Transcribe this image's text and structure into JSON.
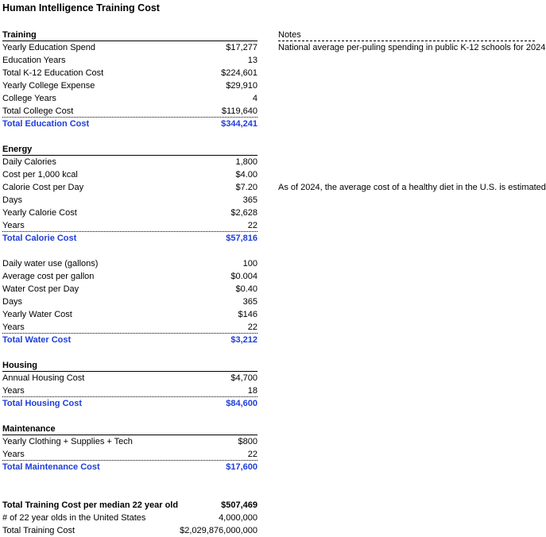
{
  "title": "Human Intelligence Training Cost",
  "notes_header": "Notes",
  "notes": {
    "education": "National average per-puling spending in public K-12 schools for 2024",
    "energy": "As of 2024, the average cost of a healthy diet in the U.S. is estimated"
  },
  "training": {
    "header": "Training",
    "rows": [
      {
        "label": "Yearly Education Spend",
        "value": "$17,277"
      },
      {
        "label": "Education Years",
        "value": "13"
      },
      {
        "label": "Total K-12 Education Cost",
        "value": "$224,601"
      },
      {
        "label": "Yearly College Expense",
        "value": "$29,910"
      },
      {
        "label": "College Years",
        "value": "4"
      },
      {
        "label": "Total College Cost",
        "value": "$119,640"
      }
    ],
    "total": {
      "label": "Total Education Cost",
      "value": "$344,241"
    }
  },
  "energy": {
    "header": "Energy",
    "rows": [
      {
        "label": "Daily Calories",
        "value": "1,800"
      },
      {
        "label": "Cost per 1,000 kcal",
        "value": "$4.00"
      },
      {
        "label": "Calorie Cost per Day",
        "value": "$7.20"
      },
      {
        "label": "Days",
        "value": "365"
      },
      {
        "label": "Yearly Calorie Cost",
        "value": "$2,628"
      },
      {
        "label": "Years",
        "value": "22"
      }
    ],
    "total": {
      "label": "Total Calorie Cost",
      "value": "$57,816"
    }
  },
  "water": {
    "rows": [
      {
        "label": "Daily water use (gallons)",
        "value": "100"
      },
      {
        "label": "Average cost per gallon",
        "value": "$0.004"
      },
      {
        "label": "Water Cost per Day",
        "value": "$0.40"
      },
      {
        "label": "Days",
        "value": "365"
      },
      {
        "label": "Yearly Water Cost",
        "value": "$146"
      },
      {
        "label": "Years",
        "value": "22"
      }
    ],
    "total": {
      "label": "Total Water Cost",
      "value": "$3,212"
    }
  },
  "housing": {
    "header": "Housing",
    "rows": [
      {
        "label": "Annual Housing Cost",
        "value": "$4,700"
      },
      {
        "label": "Years",
        "value": "18"
      }
    ],
    "total": {
      "label": "Total Housing Cost",
      "value": "$84,600"
    }
  },
  "maintenance": {
    "header": "Maintenance",
    "rows": [
      {
        "label": "Yearly Clothing + Supplies + Tech",
        "value": "$800"
      },
      {
        "label": "Years",
        "value": "22"
      }
    ],
    "total": {
      "label": "Total Maintenance Cost",
      "value": "$17,600"
    }
  },
  "summary": [
    {
      "label": "Total Training Cost per median 22 year old",
      "value": "$507,469"
    },
    {
      "label": "# of 22 year olds in the United States",
      "value": "4,000,000"
    },
    {
      "label": "Total Training Cost",
      "value": "$2,029,876,000,000"
    }
  ]
}
